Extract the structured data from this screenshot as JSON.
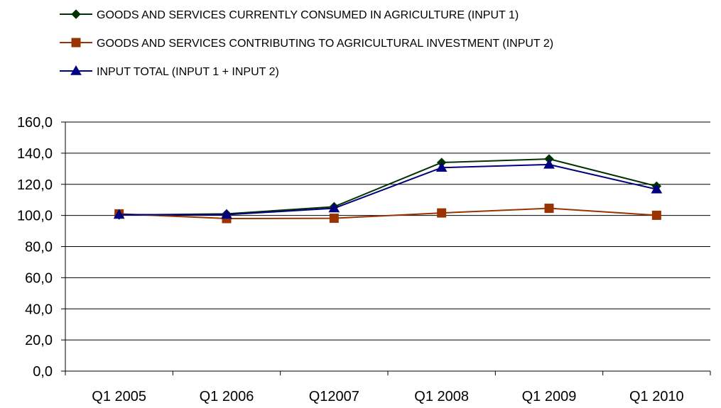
{
  "chart_data": {
    "type": "line",
    "title": "",
    "xlabel": "",
    "ylabel": "",
    "categories": [
      "Q1 2005",
      "Q1 2006",
      "Q12007",
      "Q1 2008",
      "Q1 2009",
      "Q1 2010"
    ],
    "ylim": [
      0,
      160
    ],
    "y_ticks": [
      "0,0",
      "20,0",
      "40,0",
      "60,0",
      "80,0",
      "100,0",
      "120,0",
      "140,0",
      "160,0"
    ],
    "grid": "horizontal",
    "legend_position": "top-left",
    "series": [
      {
        "name": "GOODS AND SERVICES CURRENTLY CONSUMED IN AGRICULTURE (INPUT 1)",
        "values": [
          100.3,
          101.0,
          105.6,
          134.0,
          136.3,
          118.8
        ],
        "color": "#003300",
        "marker": "diamond"
      },
      {
        "name": "GOODS AND SERVICES CONTRIBUTING TO AGRICULTURAL INVESTMENT (INPUT 2)",
        "values": [
          101.0,
          98.0,
          98.2,
          101.6,
          104.6,
          100.1
        ],
        "color": "#993300",
        "marker": "square"
      },
      {
        "name": "INPUT TOTAL (INPUT 1 + INPUT 2)",
        "values": [
          100.5,
          100.5,
          104.6,
          130.7,
          132.7,
          116.8
        ],
        "color": "#000080",
        "marker": "triangle"
      }
    ]
  }
}
